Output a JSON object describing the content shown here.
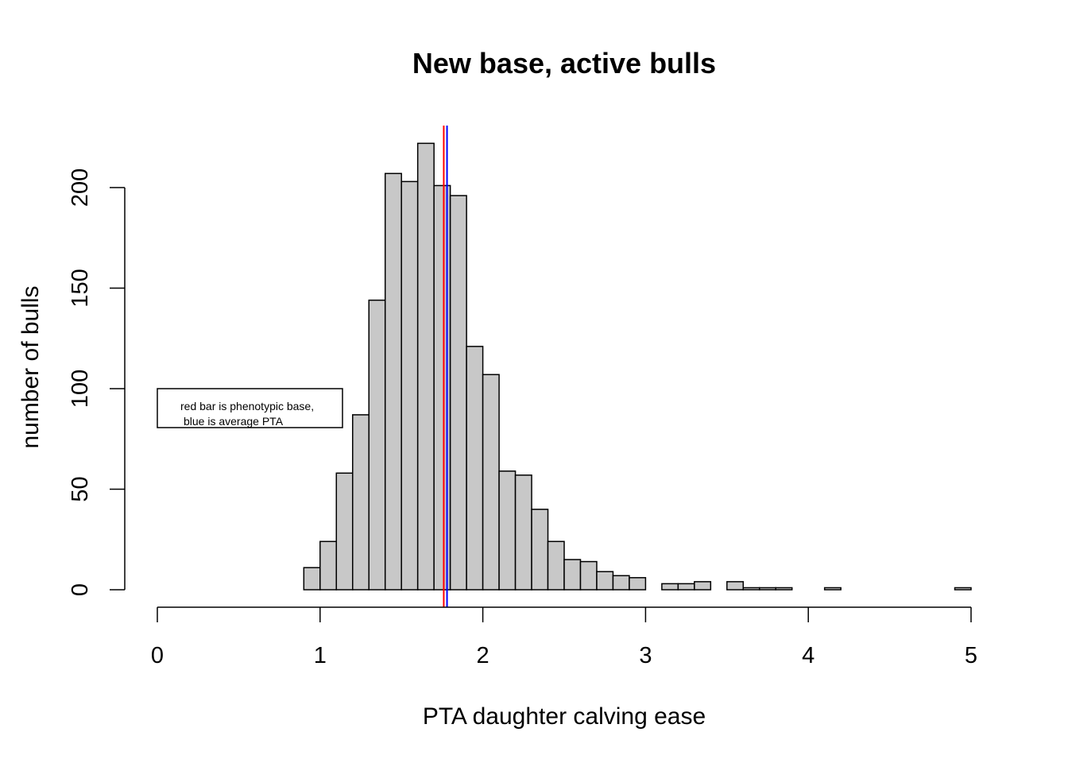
{
  "chart_data": {
    "type": "bar",
    "title": "New base, active bulls",
    "xlabel": "PTA daughter calving ease",
    "ylabel": "number of bulls",
    "xlim": [
      0,
      5
    ],
    "ylim": [
      0,
      200
    ],
    "x_ticks": [
      "0",
      "1",
      "2",
      "3",
      "4",
      "5"
    ],
    "y_ticks": [
      "0",
      "50",
      "100",
      "150",
      "200"
    ],
    "bin_width": 0.1,
    "bin_start": 0.9,
    "values": [
      11,
      24,
      58,
      87,
      144,
      207,
      203,
      222,
      201,
      196,
      121,
      107,
      59,
      57,
      40,
      24,
      15,
      14,
      9,
      7,
      6,
      0,
      3,
      3,
      4,
      0,
      4,
      1,
      1,
      1,
      0,
      0,
      1,
      0,
      0,
      0,
      0,
      0,
      0,
      0,
      1
    ],
    "bar_color": "#c8c8c8",
    "reference_lines": [
      {
        "label": "phenotypic base",
        "x": 1.76,
        "color": "#ff0000"
      },
      {
        "label": "average PTA",
        "x": 1.78,
        "color": "#0000ff"
      }
    ],
    "legend": {
      "lines": [
        "red bar is phenotypic base,",
        "blue is average PTA"
      ],
      "placement": "left"
    },
    "grid": false
  }
}
